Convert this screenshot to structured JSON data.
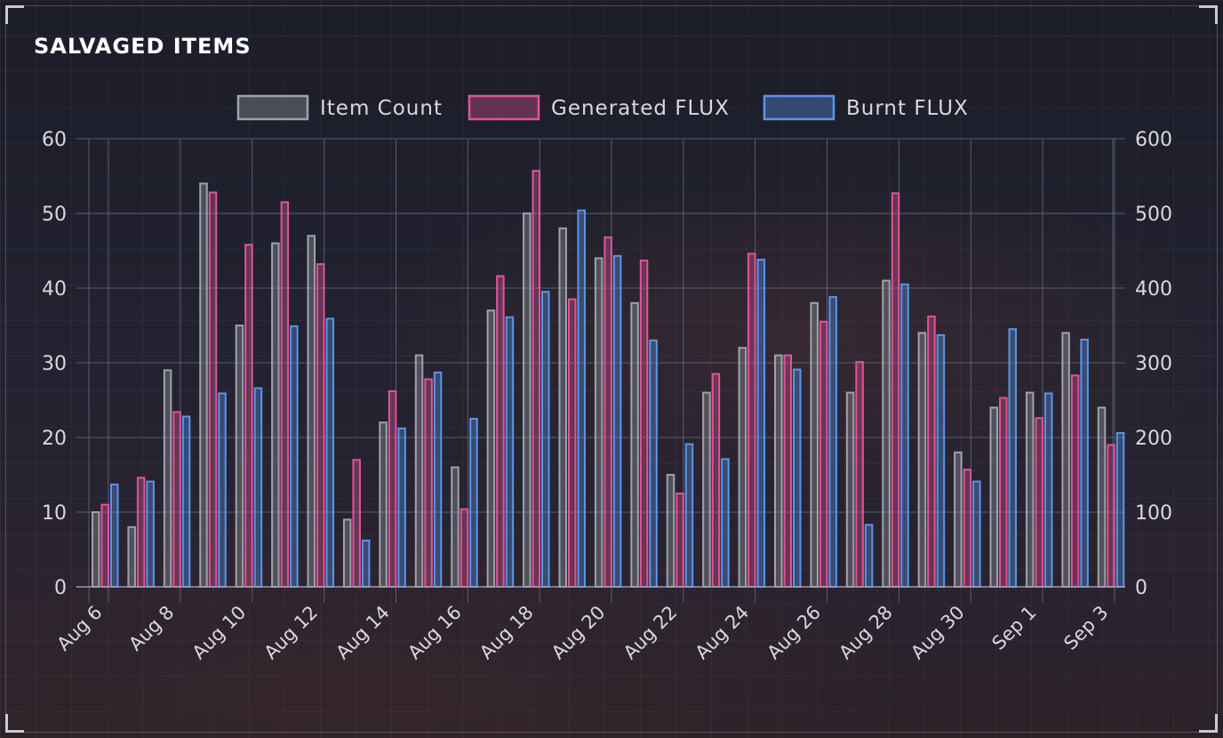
{
  "title": "SALVAGED ITEMS",
  "colors": {
    "item_count": "#9ea3ab",
    "generated_flux": "#e0559a",
    "burnt_flux": "#5a95ea",
    "grid": "#6e7080",
    "text": "#d8d9e0"
  },
  "chart_data": {
    "type": "bar",
    "title": "SALVAGED ITEMS",
    "legend_position": "top-center",
    "grid": true,
    "x": [
      "Aug 6",
      "Aug 7",
      "Aug 8",
      "Aug 9",
      "Aug 10",
      "Aug 11",
      "Aug 12",
      "Aug 13",
      "Aug 14",
      "Aug 15",
      "Aug 16",
      "Aug 17",
      "Aug 18",
      "Aug 19",
      "Aug 20",
      "Aug 21",
      "Aug 22",
      "Aug 23",
      "Aug 24",
      "Aug 25",
      "Aug 26",
      "Aug 27",
      "Aug 28",
      "Aug 29",
      "Aug 30",
      "Aug 31",
      "Sep 1",
      "Sep 2",
      "Sep 3"
    ],
    "x_tick_labels": [
      "Aug 6",
      "Aug 8",
      "Aug 10",
      "Aug 12",
      "Aug 14",
      "Aug 16",
      "Aug 18",
      "Aug 20",
      "Aug 22",
      "Aug 24",
      "Aug 26",
      "Aug 28",
      "Aug 30",
      "Sep 1",
      "Sep 3"
    ],
    "y_left": {
      "min": 0,
      "max": 60,
      "ticks": [
        0,
        10,
        20,
        30,
        40,
        50,
        60
      ]
    },
    "y_right": {
      "min": 0,
      "max": 600,
      "ticks": [
        0,
        100,
        200,
        300,
        400,
        500,
        600
      ]
    },
    "series": [
      {
        "name": "Item Count",
        "axis": "left",
        "color": "#9ea3ab",
        "values": [
          10,
          8,
          29,
          54,
          35,
          46,
          47,
          9,
          22,
          31,
          16,
          37,
          50,
          48,
          44,
          38,
          15,
          26,
          32,
          31,
          38,
          26,
          41,
          34,
          18,
          24,
          26,
          34,
          24
        ]
      },
      {
        "name": "Generated FLUX",
        "axis": "right",
        "color": "#e0559a",
        "values": [
          110,
          146,
          234,
          528,
          458,
          515,
          432,
          170,
          262,
          278,
          104,
          416,
          557,
          385,
          468,
          437,
          125,
          285,
          446,
          310,
          355,
          301,
          527,
          362,
          157,
          253,
          226,
          283,
          190
        ]
      },
      {
        "name": "Burnt FLUX",
        "axis": "right",
        "color": "#5a95ea",
        "values": [
          137,
          141,
          228,
          259,
          266,
          349,
          359,
          62,
          212,
          287,
          225,
          361,
          395,
          504,
          443,
          330,
          191,
          171,
          438,
          291,
          388,
          83,
          405,
          337,
          141,
          345,
          259,
          331,
          206
        ]
      }
    ]
  }
}
